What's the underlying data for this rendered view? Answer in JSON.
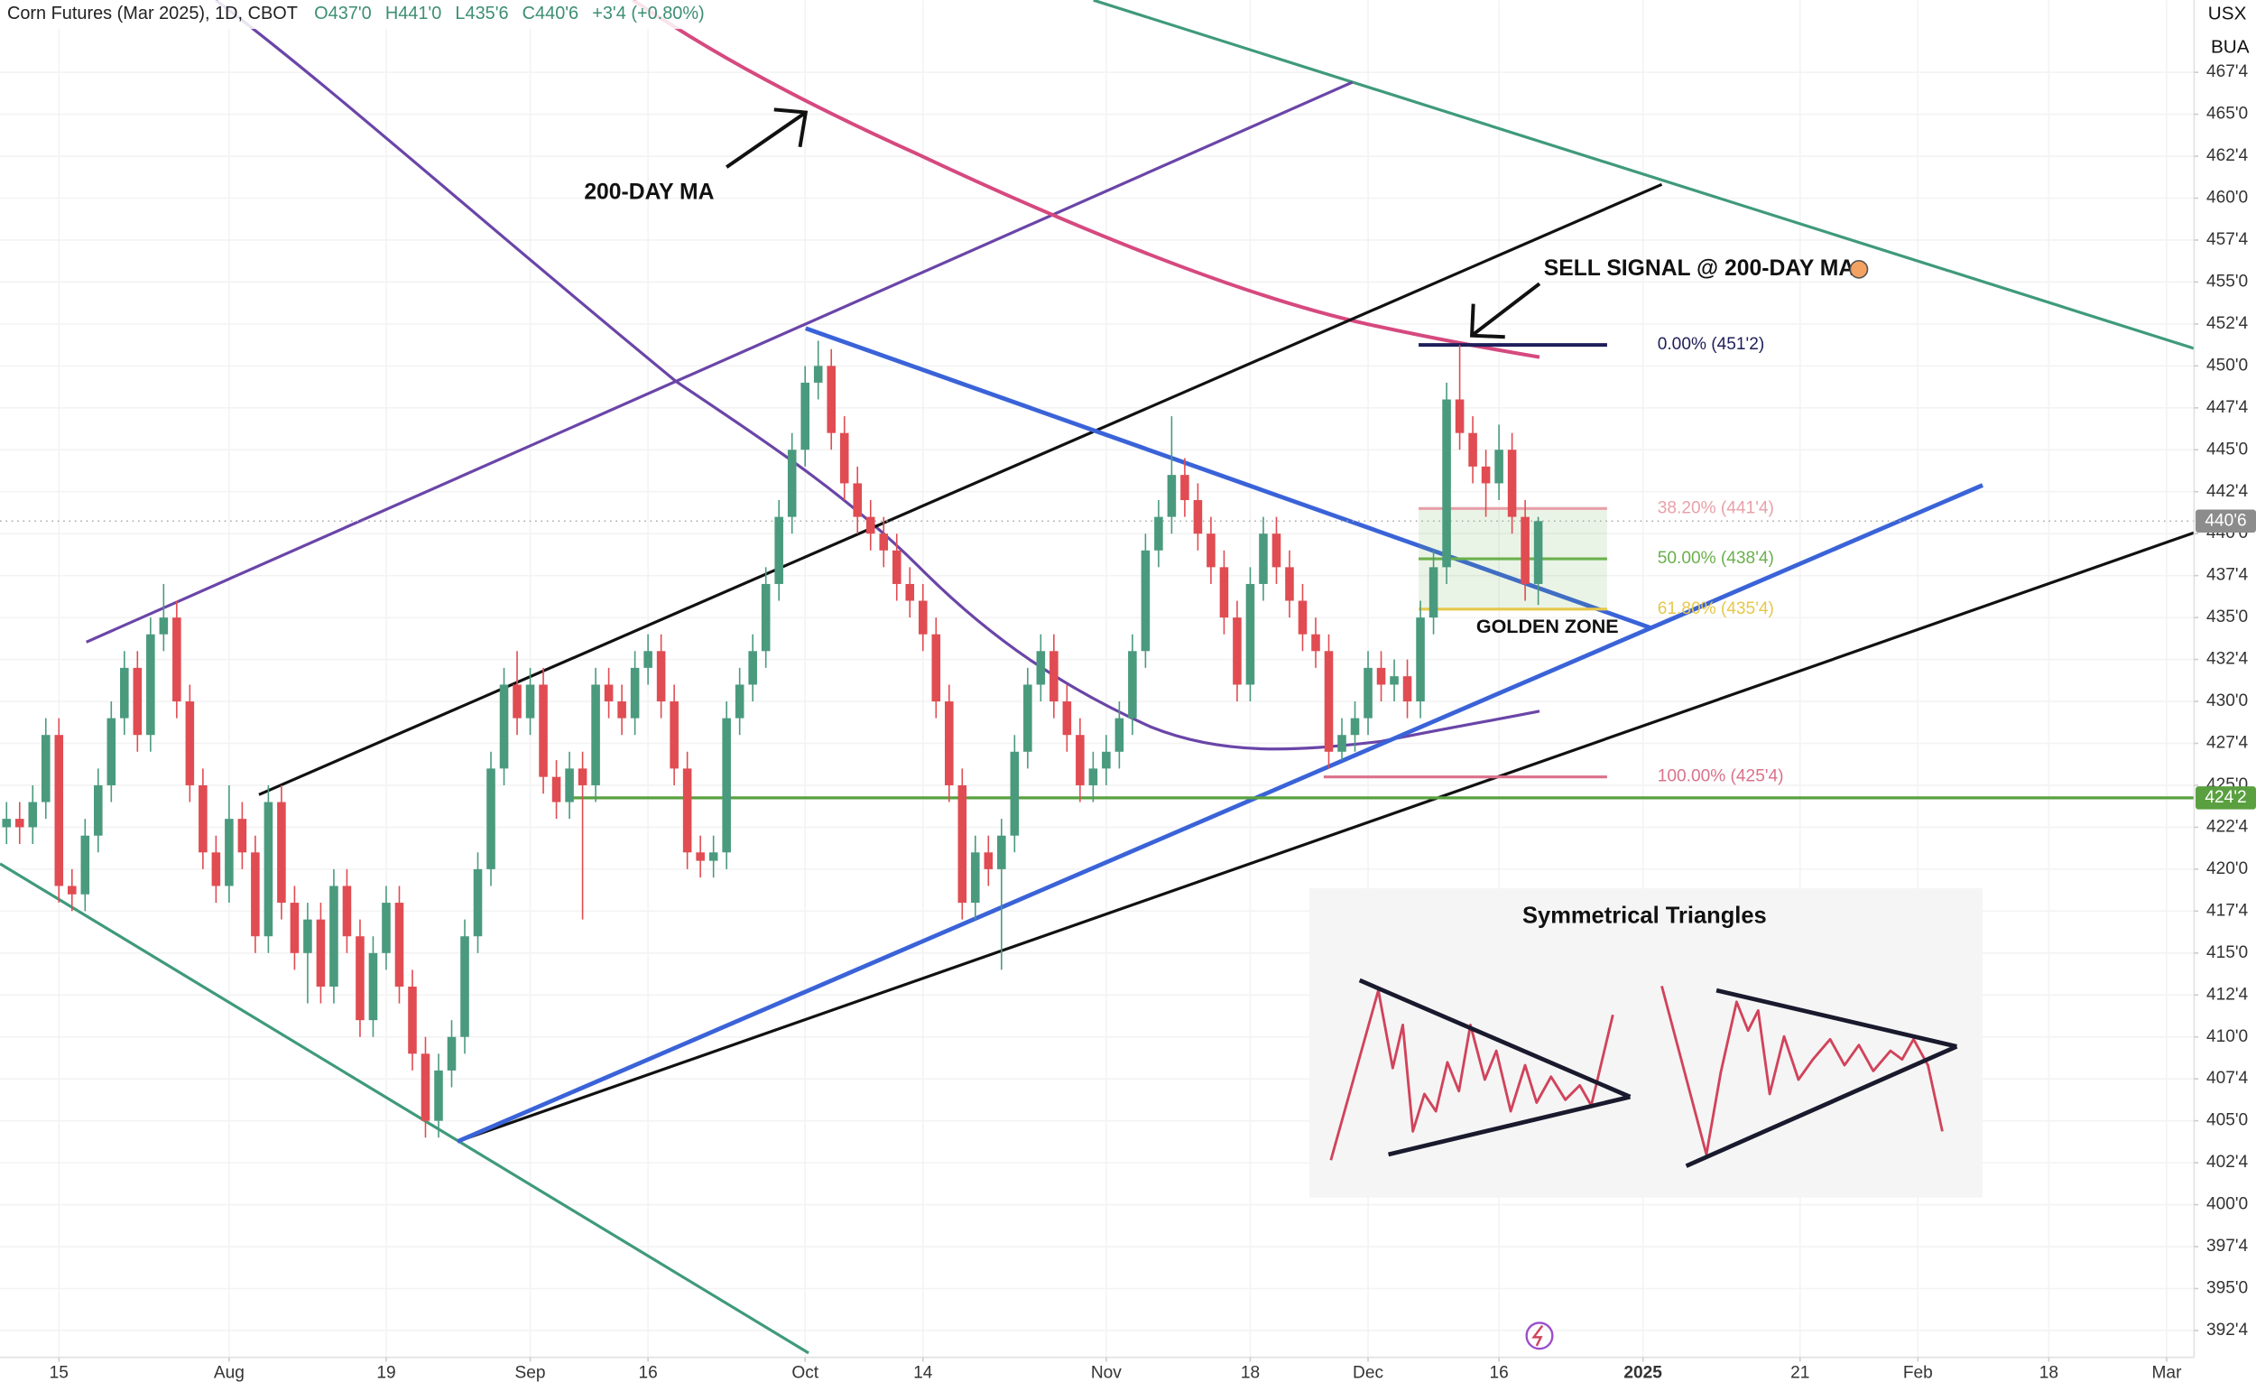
{
  "chart_data": {
    "type": "candlestick",
    "title": "Corn Futures (Mar 2025), 1D, CBOT",
    "bar_stats": [
      {
        "value": 437,
        "label": "O437'0"
      },
      {
        "value": 441,
        "label": "H441'0"
      },
      {
        "value": 435.75,
        "label": "L435'6"
      },
      {
        "value": 440.75,
        "label": "C440'6"
      },
      {
        "value": 3.5,
        "label": "+3'4 (+0.80%)"
      }
    ],
    "unit_labels": [
      "USX",
      "BUA"
    ],
    "up_color": "#4a9a7e",
    "down_color": "#e04c52",
    "open": [
      422.5,
      423,
      422.5,
      424,
      428,
      419,
      418.5,
      422,
      425,
      429,
      432,
      428,
      434,
      435,
      430,
      425,
      421,
      419,
      423,
      421,
      416,
      424,
      418,
      415,
      417,
      413,
      419,
      416,
      411,
      415,
      418,
      413,
      409,
      405,
      408,
      410,
      416,
      420,
      426,
      431,
      429,
      431,
      425.5,
      424,
      426,
      425,
      431,
      430,
      429,
      432,
      433,
      430,
      426,
      421,
      420.5,
      421,
      429,
      431,
      433,
      437,
      441,
      445,
      449,
      450,
      446,
      443,
      441,
      440,
      439,
      437,
      436,
      434,
      430,
      425,
      418,
      421,
      420,
      422,
      427,
      431,
      433,
      430,
      428,
      425,
      426,
      427,
      429,
      433,
      439,
      441,
      443.5,
      442,
      440,
      438,
      435,
      431,
      437,
      440,
      438,
      436,
      434,
      433,
      427,
      428,
      429,
      432,
      431,
      431.5,
      430,
      435,
      438,
      448,
      446,
      444,
      443,
      445,
      441,
      437
    ],
    "high": [
      424,
      424,
      425,
      429,
      429,
      420,
      423,
      426,
      430,
      433,
      433,
      435,
      437,
      436,
      431,
      426,
      422,
      425,
      424,
      422,
      425,
      425,
      419,
      418,
      418,
      420,
      420,
      417,
      416,
      419,
      419,
      414,
      410,
      409,
      411,
      417,
      421,
      427,
      432,
      433,
      432,
      432,
      426.5,
      427,
      427,
      432,
      432,
      431,
      433,
      434,
      434,
      431,
      427,
      422,
      422,
      430,
      432,
      434,
      438,
      442,
      446,
      450,
      451.5,
      451,
      447,
      444,
      442,
      441,
      440,
      438,
      437,
      435,
      431,
      426,
      422,
      422,
      423,
      428,
      432,
      434,
      434,
      431,
      429,
      427,
      428,
      430,
      434,
      440,
      442,
      447,
      444.5,
      443,
      441,
      439,
      436,
      438,
      441,
      441,
      439,
      437,
      435,
      434,
      429,
      430,
      433,
      433,
      432.5,
      432.5,
      436,
      439,
      449,
      451.25,
      447,
      445,
      446.5,
      446,
      442,
      441
    ],
    "low": [
      421.5,
      421.5,
      421.5,
      423,
      418,
      417.5,
      417.5,
      421,
      424,
      428,
      427,
      427,
      433,
      429,
      424,
      420,
      418,
      418,
      420,
      415,
      415,
      417,
      414,
      412,
      412,
      412,
      415,
      410,
      410,
      414,
      412,
      408,
      404,
      404,
      407,
      409,
      415,
      419,
      425,
      428,
      428,
      424.5,
      423,
      423,
      417,
      424,
      429,
      428,
      428,
      431,
      429,
      425,
      420,
      419.5,
      419.5,
      420,
      428,
      430,
      432,
      436,
      440,
      444,
      448,
      445,
      442,
      440,
      439,
      438,
      436,
      435,
      433,
      429,
      424,
      417,
      417,
      419,
      414,
      421,
      426,
      430,
      429,
      427,
      424,
      424,
      425,
      426,
      428,
      432,
      438,
      440,
      441,
      439,
      437,
      434,
      430,
      430,
      436,
      437,
      435,
      433,
      432,
      426,
      426.5,
      427,
      428,
      430,
      430,
      429,
      429,
      434,
      437,
      445,
      443,
      441,
      442,
      440,
      436,
      435.75
    ],
    "close": [
      423,
      422.5,
      424,
      428,
      419,
      418.5,
      422,
      425,
      429,
      432,
      428,
      434,
      435,
      430,
      425,
      421,
      419,
      423,
      421,
      416,
      424,
      418,
      415,
      417,
      413,
      419,
      416,
      411,
      415,
      418,
      413,
      409,
      405,
      408,
      410,
      416,
      420,
      426,
      431,
      429,
      431,
      425.5,
      424,
      426,
      425,
      431,
      430,
      429,
      432,
      433,
      430,
      426,
      421,
      420.5,
      421,
      429,
      431,
      433,
      437,
      441,
      445,
      449,
      450,
      446,
      443,
      441,
      440,
      439,
      437,
      436,
      434,
      430,
      425,
      418,
      421,
      420,
      422,
      427,
      431,
      433,
      430,
      428,
      425,
      426,
      427,
      429,
      433,
      439,
      441,
      443.5,
      442,
      440,
      438,
      435,
      431,
      437,
      440,
      438,
      436,
      434,
      433,
      427,
      428,
      429,
      432,
      431,
      431.5,
      430,
      435,
      438,
      448,
      446,
      444,
      443,
      445,
      441,
      437,
      440.75
    ],
    "xlim": [
      -0.5,
      167.1
    ],
    "xticks": [
      {
        "value": 4,
        "label": "15"
      },
      {
        "value": 17,
        "label": "Aug"
      },
      {
        "value": 29,
        "label": "19"
      },
      {
        "value": 40,
        "label": "Sep"
      },
      {
        "value": 49,
        "label": "16"
      },
      {
        "value": 61,
        "label": "Oct"
      },
      {
        "value": 70,
        "label": "14"
      },
      {
        "value": 84,
        "label": "Nov"
      },
      {
        "value": 95,
        "label": "18"
      },
      {
        "value": 104,
        "label": "Dec"
      },
      {
        "value": 114,
        "label": "16"
      },
      {
        "value": 125,
        "label": "2025"
      },
      {
        "value": 137,
        "label": "21"
      },
      {
        "value": 146,
        "label": "Feb"
      },
      {
        "value": 156,
        "label": "18"
      },
      {
        "value": 165,
        "label": "Mar"
      }
    ],
    "ylim": [
      390.9,
      471.8
    ],
    "yticks": [
      {
        "value": 392.5,
        "label": "392'4"
      },
      {
        "value": 395,
        "label": "395'0"
      },
      {
        "value": 397.5,
        "label": "397'4"
      },
      {
        "value": 400,
        "label": "400'0"
      },
      {
        "value": 402.5,
        "label": "402'4"
      },
      {
        "value": 405,
        "label": "405'0"
      },
      {
        "value": 407.5,
        "label": "407'4"
      },
      {
        "value": 410,
        "label": "410'0"
      },
      {
        "value": 412.5,
        "label": "412'4"
      },
      {
        "value": 415,
        "label": "415'0"
      },
      {
        "value": 417.5,
        "label": "417'4"
      },
      {
        "value": 420,
        "label": "420'0"
      },
      {
        "value": 422.5,
        "label": "422'4"
      },
      {
        "value": 425,
        "label": "425'0"
      },
      {
        "value": 427.5,
        "label": "427'4"
      },
      {
        "value": 430,
        "label": "430'0"
      },
      {
        "value": 432.5,
        "label": "432'4"
      },
      {
        "value": 435,
        "label": "435'0"
      },
      {
        "value": 437.5,
        "label": "437'4"
      },
      {
        "value": 440,
        "label": "440'0"
      },
      {
        "value": 442.5,
        "label": "442'4"
      },
      {
        "value": 445,
        "label": "445'0"
      },
      {
        "value": 447.5,
        "label": "447'4"
      },
      {
        "value": 450,
        "label": "450'0"
      },
      {
        "value": 452.5,
        "label": "452'4"
      },
      {
        "value": 455,
        "label": "455'0"
      },
      {
        "value": 457.5,
        "label": "457'4"
      },
      {
        "value": 460,
        "label": "460'0"
      },
      {
        "value": 462.5,
        "label": "462'4"
      },
      {
        "value": 465,
        "label": "465'0"
      },
      {
        "value": 467.5,
        "label": "467'4"
      }
    ],
    "grid": true,
    "fib_levels": [
      {
        "value": 451.25,
        "label": "0.00% (451'2)",
        "color": "#1e1e5a"
      },
      {
        "value": 441.5,
        "label": "38.20% (441'4)",
        "color": "#e8a0a8"
      },
      {
        "value": 438.5,
        "label": "50.00% (438'4)",
        "color": "#6ab04c"
      },
      {
        "value": 435.5,
        "label": "61.80% (435'4)",
        "color": "#e6c84a"
      },
      {
        "value": 425.5,
        "label": "100.00% (425'4)",
        "color": "#d9718a"
      }
    ],
    "last_price": {
      "value": 440.75,
      "label": "440'6",
      "color": "#8c8c8c"
    },
    "support_line": {
      "value": 424.25,
      "label": "424'2",
      "color": "#5aa040"
    },
    "annotations": [
      "200-DAY MA",
      "SELL SIGNAL @ 200-DAY MA",
      "GOLDEN ZONE"
    ],
    "inset_title": "Symmetrical Triangles"
  }
}
